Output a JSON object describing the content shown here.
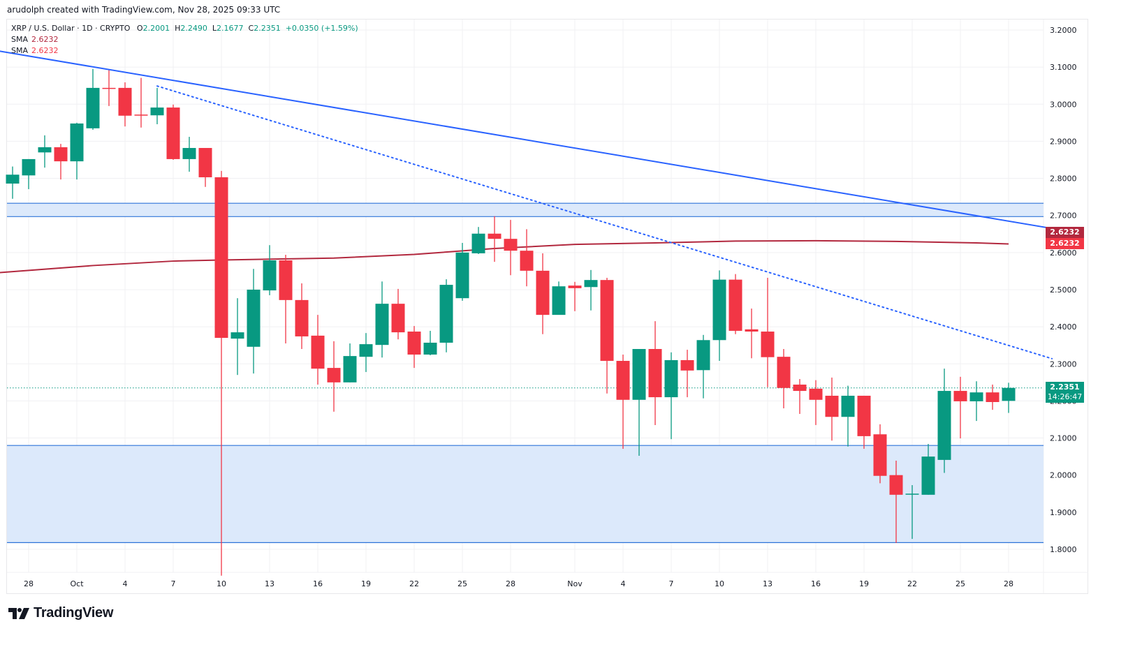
{
  "attribution": "arudolph created with TradingView.com, Nov 28, 2025 09:33 UTC",
  "legend": {
    "symbol": "XRP / U.S. Dollar · 1D · CRYPTO",
    "open_label": "O",
    "open": "2.2001",
    "high_label": "H",
    "high": "2.2490",
    "low_label": "L",
    "low": "2.1677",
    "close_label": "C",
    "close": "2.2351",
    "change": "+0.0350 (+1.59%)",
    "sma1_label": "SMA",
    "sma1_value": "2.6232",
    "sma2_label": "SMA",
    "sma2_value": "2.6232"
  },
  "price_tags": {
    "sma1": "2.6232",
    "sma2": "2.6232",
    "last_price": "2.2351",
    "countdown": "14:26:47"
  },
  "logo": {
    "text": "TradingView"
  },
  "colors": {
    "up": "#089981",
    "down": "#f23645",
    "sma1": "#b2283e",
    "sma2": "#f23645",
    "trendline": "#2962ff",
    "zone_fill": "#dce9fb",
    "zone_border": "#2f74d9",
    "grid": "#f0f0f3"
  },
  "chart_data": {
    "type": "candlestick",
    "title": "XRP / U.S. Dollar · 1D · CRYPTO",
    "xlabel": "",
    "ylabel": "",
    "ylim": [
      1.7,
      3.23
    ],
    "y_ticks": [
      "3.2000",
      "3.1000",
      "3.0000",
      "2.9000",
      "2.8000",
      "2.7000",
      "2.6000",
      "2.5000",
      "2.4000",
      "2.3000",
      "2.2000",
      "2.1000",
      "2.0000",
      "1.9000",
      "1.8000"
    ],
    "x_tick_labels": [
      {
        "label": "28",
        "index": 1
      },
      {
        "label": "Oct",
        "index": 4
      },
      {
        "label": "4",
        "index": 7
      },
      {
        "label": "7",
        "index": 10
      },
      {
        "label": "10",
        "index": 13
      },
      {
        "label": "13",
        "index": 16
      },
      {
        "label": "16",
        "index": 19
      },
      {
        "label": "19",
        "index": 22
      },
      {
        "label": "22",
        "index": 25
      },
      {
        "label": "25",
        "index": 28
      },
      {
        "label": "28",
        "index": 31
      },
      {
        "label": "Nov",
        "index": 35
      },
      {
        "label": "4",
        "index": 38
      },
      {
        "label": "7",
        "index": 41
      },
      {
        "label": "10",
        "index": 44
      },
      {
        "label": "13",
        "index": 47
      },
      {
        "label": "16",
        "index": 50
      },
      {
        "label": "19",
        "index": 53
      },
      {
        "label": "22",
        "index": 56
      },
      {
        "label": "25",
        "index": 59
      },
      {
        "label": "28",
        "index": 62
      }
    ],
    "grid": true,
    "candles": [
      {
        "date": "2025-09-27",
        "o": 2.786,
        "h": 2.832,
        "l": 2.745,
        "c": 2.81
      },
      {
        "date": "2025-09-28",
        "o": 2.808,
        "h": 2.852,
        "l": 2.771,
        "c": 2.852
      },
      {
        "date": "2025-09-29",
        "o": 2.87,
        "h": 2.916,
        "l": 2.829,
        "c": 2.884
      },
      {
        "date": "2025-09-30",
        "o": 2.884,
        "h": 2.893,
        "l": 2.797,
        "c": 2.846
      },
      {
        "date": "2025-10-01",
        "o": 2.846,
        "h": 2.95,
        "l": 2.797,
        "c": 2.948
      },
      {
        "date": "2025-10-02",
        "o": 2.935,
        "h": 3.095,
        "l": 2.931,
        "c": 3.044
      },
      {
        "date": "2025-10-03",
        "o": 3.044,
        "h": 3.093,
        "l": 2.995,
        "c": 3.043
      },
      {
        "date": "2025-10-04",
        "o": 3.044,
        "h": 3.059,
        "l": 2.94,
        "c": 2.969
      },
      {
        "date": "2025-10-05",
        "o": 2.972,
        "h": 3.071,
        "l": 2.937,
        "c": 2.97
      },
      {
        "date": "2025-10-06",
        "o": 2.97,
        "h": 3.044,
        "l": 2.946,
        "c": 2.991
      },
      {
        "date": "2025-10-07",
        "o": 2.991,
        "h": 2.999,
        "l": 2.85,
        "c": 2.852
      },
      {
        "date": "2025-10-08",
        "o": 2.852,
        "h": 2.912,
        "l": 2.818,
        "c": 2.882
      },
      {
        "date": "2025-10-09",
        "o": 2.882,
        "h": 2.882,
        "l": 2.777,
        "c": 2.803
      },
      {
        "date": "2025-10-10",
        "o": 2.803,
        "h": 2.82,
        "l": 1.729,
        "c": 2.37
      },
      {
        "date": "2025-10-11",
        "o": 2.368,
        "h": 2.477,
        "l": 2.27,
        "c": 2.385
      },
      {
        "date": "2025-10-12",
        "o": 2.346,
        "h": 2.556,
        "l": 2.274,
        "c": 2.5
      },
      {
        "date": "2025-10-13",
        "o": 2.498,
        "h": 2.62,
        "l": 2.485,
        "c": 2.579
      },
      {
        "date": "2025-10-14",
        "o": 2.579,
        "h": 2.594,
        "l": 2.355,
        "c": 2.472
      },
      {
        "date": "2025-10-15",
        "o": 2.472,
        "h": 2.517,
        "l": 2.34,
        "c": 2.374
      },
      {
        "date": "2025-10-16",
        "o": 2.376,
        "h": 2.432,
        "l": 2.244,
        "c": 2.287
      },
      {
        "date": "2025-10-17",
        "o": 2.289,
        "h": 2.361,
        "l": 2.171,
        "c": 2.25
      },
      {
        "date": "2025-10-18",
        "o": 2.25,
        "h": 2.355,
        "l": 2.25,
        "c": 2.321
      },
      {
        "date": "2025-10-19",
        "o": 2.319,
        "h": 2.383,
        "l": 2.278,
        "c": 2.353
      },
      {
        "date": "2025-10-20",
        "o": 2.351,
        "h": 2.522,
        "l": 2.317,
        "c": 2.462
      },
      {
        "date": "2025-10-21",
        "o": 2.462,
        "h": 2.502,
        "l": 2.366,
        "c": 2.385
      },
      {
        "date": "2025-10-22",
        "o": 2.387,
        "h": 2.402,
        "l": 2.289,
        "c": 2.325
      },
      {
        "date": "2025-10-23",
        "o": 2.325,
        "h": 2.389,
        "l": 2.323,
        "c": 2.357
      },
      {
        "date": "2025-10-24",
        "o": 2.357,
        "h": 2.528,
        "l": 2.331,
        "c": 2.513
      },
      {
        "date": "2025-10-25",
        "o": 2.477,
        "h": 2.626,
        "l": 2.47,
        "c": 2.6
      },
      {
        "date": "2025-10-26",
        "o": 2.598,
        "h": 2.669,
        "l": 2.596,
        "c": 2.651
      },
      {
        "date": "2025-10-27",
        "o": 2.651,
        "h": 2.698,
        "l": 2.575,
        "c": 2.637
      },
      {
        "date": "2025-10-28",
        "o": 2.637,
        "h": 2.688,
        "l": 2.539,
        "c": 2.605
      },
      {
        "date": "2025-10-29",
        "o": 2.605,
        "h": 2.663,
        "l": 2.509,
        "c": 2.551
      },
      {
        "date": "2025-10-30",
        "o": 2.551,
        "h": 2.598,
        "l": 2.38,
        "c": 2.432
      },
      {
        "date": "2025-10-31",
        "o": 2.432,
        "h": 2.522,
        "l": 2.44,
        "c": 2.509
      },
      {
        "date": "2025-11-01",
        "o": 2.511,
        "h": 2.521,
        "l": 2.442,
        "c": 2.504
      },
      {
        "date": "2025-11-02",
        "o": 2.507,
        "h": 2.553,
        "l": 2.444,
        "c": 2.526
      },
      {
        "date": "2025-11-03",
        "o": 2.526,
        "h": 2.532,
        "l": 2.22,
        "c": 2.308
      },
      {
        "date": "2025-11-04",
        "o": 2.308,
        "h": 2.325,
        "l": 2.071,
        "c": 2.203
      },
      {
        "date": "2025-11-05",
        "o": 2.203,
        "h": 2.34,
        "l": 2.052,
        "c": 2.34
      },
      {
        "date": "2025-11-06",
        "o": 2.34,
        "h": 2.415,
        "l": 2.135,
        "c": 2.21
      },
      {
        "date": "2025-11-07",
        "o": 2.21,
        "h": 2.331,
        "l": 2.097,
        "c": 2.31
      },
      {
        "date": "2025-11-08",
        "o": 2.31,
        "h": 2.338,
        "l": 2.21,
        "c": 2.282
      },
      {
        "date": "2025-11-09",
        "o": 2.283,
        "h": 2.378,
        "l": 2.207,
        "c": 2.364
      },
      {
        "date": "2025-11-10",
        "o": 2.364,
        "h": 2.552,
        "l": 2.308,
        "c": 2.527
      },
      {
        "date": "2025-11-11",
        "o": 2.527,
        "h": 2.542,
        "l": 2.38,
        "c": 2.389
      },
      {
        "date": "2025-11-12",
        "o": 2.393,
        "h": 2.449,
        "l": 2.315,
        "c": 2.387
      },
      {
        "date": "2025-11-13",
        "o": 2.387,
        "h": 2.532,
        "l": 2.237,
        "c": 2.318
      },
      {
        "date": "2025-11-14",
        "o": 2.319,
        "h": 2.34,
        "l": 2.18,
        "c": 2.235
      },
      {
        "date": "2025-11-15",
        "o": 2.244,
        "h": 2.259,
        "l": 2.165,
        "c": 2.227
      },
      {
        "date": "2025-11-16",
        "o": 2.233,
        "h": 2.256,
        "l": 2.135,
        "c": 2.203
      },
      {
        "date": "2025-11-17",
        "o": 2.214,
        "h": 2.263,
        "l": 2.093,
        "c": 2.157
      },
      {
        "date": "2025-11-18",
        "o": 2.157,
        "h": 2.241,
        "l": 2.077,
        "c": 2.214
      },
      {
        "date": "2025-11-19",
        "o": 2.214,
        "h": 2.214,
        "l": 2.071,
        "c": 2.105
      },
      {
        "date": "2025-11-20",
        "o": 2.11,
        "h": 2.137,
        "l": 1.978,
        "c": 1.998
      },
      {
        "date": "2025-11-21",
        "o": 2.0,
        "h": 2.039,
        "l": 1.817,
        "c": 1.947
      },
      {
        "date": "2025-11-22",
        "o": 1.949,
        "h": 1.973,
        "l": 1.828,
        "c": 1.95
      },
      {
        "date": "2025-11-23",
        "o": 1.947,
        "h": 2.084,
        "l": 1.947,
        "c": 2.05
      },
      {
        "date": "2025-11-24",
        "o": 2.041,
        "h": 2.287,
        "l": 2.006,
        "c": 2.227
      },
      {
        "date": "2025-11-25",
        "o": 2.227,
        "h": 2.265,
        "l": 2.099,
        "c": 2.199
      },
      {
        "date": "2025-11-26",
        "o": 2.199,
        "h": 2.253,
        "l": 2.146,
        "c": 2.223
      },
      {
        "date": "2025-11-27",
        "o": 2.223,
        "h": 2.244,
        "l": 2.176,
        "c": 2.197
      },
      {
        "date": "2025-11-28",
        "o": 2.2001,
        "h": 2.249,
        "l": 2.1677,
        "c": 2.2351
      }
    ],
    "sma": {
      "label": "SMA",
      "last_value": 2.6232,
      "points": [
        [
          -0.8,
          2.546
        ],
        [
          5,
          2.565
        ],
        [
          10,
          2.577
        ],
        [
          13,
          2.58
        ],
        [
          20,
          2.585
        ],
        [
          25,
          2.595
        ],
        [
          30,
          2.611
        ],
        [
          35,
          2.622
        ],
        [
          40,
          2.626
        ],
        [
          45,
          2.631
        ],
        [
          50,
          2.632
        ],
        [
          55,
          2.63
        ],
        [
          60,
          2.626
        ],
        [
          62,
          2.6232
        ]
      ]
    },
    "trendlines": [
      {
        "name": "upper-trendline",
        "style": "solid",
        "from": [
          -0.8,
          3.143
        ],
        "to": [
          64.7,
          2.665
        ]
      },
      {
        "name": "lower-trendline",
        "style": "dotted",
        "from": [
          9,
          3.049
        ],
        "to": [
          64.7,
          2.314
        ]
      }
    ],
    "zones": [
      {
        "name": "resistance-zone",
        "top": 2.733,
        "bottom": 2.697
      },
      {
        "name": "support-zone",
        "top": 2.08,
        "bottom": 1.818
      }
    ],
    "last_price_line": 2.2351
  }
}
